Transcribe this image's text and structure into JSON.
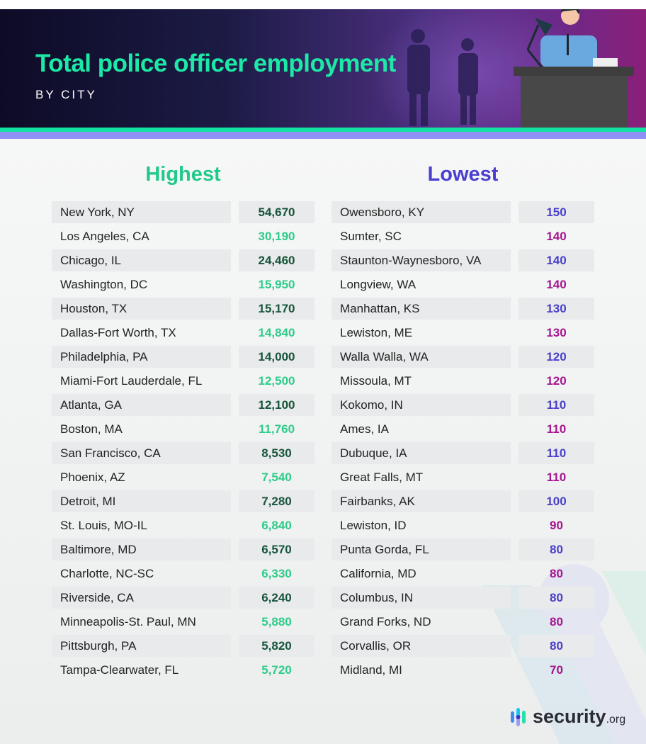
{
  "header": {
    "title": "Total police officer employment",
    "subtitle": "BY CITY"
  },
  "highest": {
    "label": "Highest",
    "rows": [
      {
        "city": "New York, NY",
        "value": "54,670"
      },
      {
        "city": "Los Angeles, CA",
        "value": "30,190"
      },
      {
        "city": "Chicago, IL",
        "value": "24,460"
      },
      {
        "city": "Washington, DC",
        "value": "15,950"
      },
      {
        "city": "Houston, TX",
        "value": "15,170"
      },
      {
        "city": "Dallas-Fort Worth, TX",
        "value": "14,840"
      },
      {
        "city": "Philadelphia, PA",
        "value": "14,000"
      },
      {
        "city": "Miami-Fort Lauderdale, FL",
        "value": "12,500"
      },
      {
        "city": "Atlanta, GA",
        "value": "12,100"
      },
      {
        "city": "Boston, MA",
        "value": "11,760"
      },
      {
        "city": "San Francisco, CA",
        "value": "8,530"
      },
      {
        "city": "Phoenix, AZ",
        "value": "7,540"
      },
      {
        "city": "Detroit, MI",
        "value": "7,280"
      },
      {
        "city": "St. Louis, MO-IL",
        "value": "6,840"
      },
      {
        "city": "Baltimore, MD",
        "value": "6,570"
      },
      {
        "city": "Charlotte, NC-SC",
        "value": "6,330"
      },
      {
        "city": "Riverside, CA",
        "value": "6,240"
      },
      {
        "city": "Minneapolis-St. Paul, MN",
        "value": "5,880"
      },
      {
        "city": "Pittsburgh, PA",
        "value": "5,820"
      },
      {
        "city": "Tampa-Clearwater, FL",
        "value": "5,720"
      }
    ]
  },
  "lowest": {
    "label": "Lowest",
    "rows": [
      {
        "city": "Owensboro, KY",
        "value": "150"
      },
      {
        "city": "Sumter, SC",
        "value": "140"
      },
      {
        "city": "Staunton-Waynesboro, VA",
        "value": "140"
      },
      {
        "city": "Longview, WA",
        "value": "140"
      },
      {
        "city": "Manhattan, KS",
        "value": "130"
      },
      {
        "city": "Lewiston, ME",
        "value": "130"
      },
      {
        "city": "Walla Walla, WA",
        "value": "120"
      },
      {
        "city": "Missoula, MT",
        "value": "120"
      },
      {
        "city": "Kokomo, IN",
        "value": "110"
      },
      {
        "city": "Ames, IA",
        "value": "110"
      },
      {
        "city": "Dubuque, IA",
        "value": "110"
      },
      {
        "city": "Great Falls, MT",
        "value": "110"
      },
      {
        "city": "Fairbanks, AK",
        "value": "100"
      },
      {
        "city": "Lewiston, ID",
        "value": "90"
      },
      {
        "city": "Punta Gorda, FL",
        "value": "80"
      },
      {
        "city": "California, MD",
        "value": "80"
      },
      {
        "city": "Columbus, IN",
        "value": "80"
      },
      {
        "city": "Grand Forks, ND",
        "value": "80"
      },
      {
        "city": "Corvallis, OR",
        "value": "80"
      },
      {
        "city": "Midland, MI",
        "value": "70"
      }
    ]
  },
  "colors": {
    "highest_heading": "#22c98a",
    "highest_shaded": "#17553b",
    "highest_plain": "#2ecc8a",
    "lowest_heading": "#4b3fd0",
    "lowest_shaded": "#4b3fc9",
    "lowest_plain": "#a5158f"
  },
  "logo": {
    "name": "security",
    "tld": ".org"
  }
}
